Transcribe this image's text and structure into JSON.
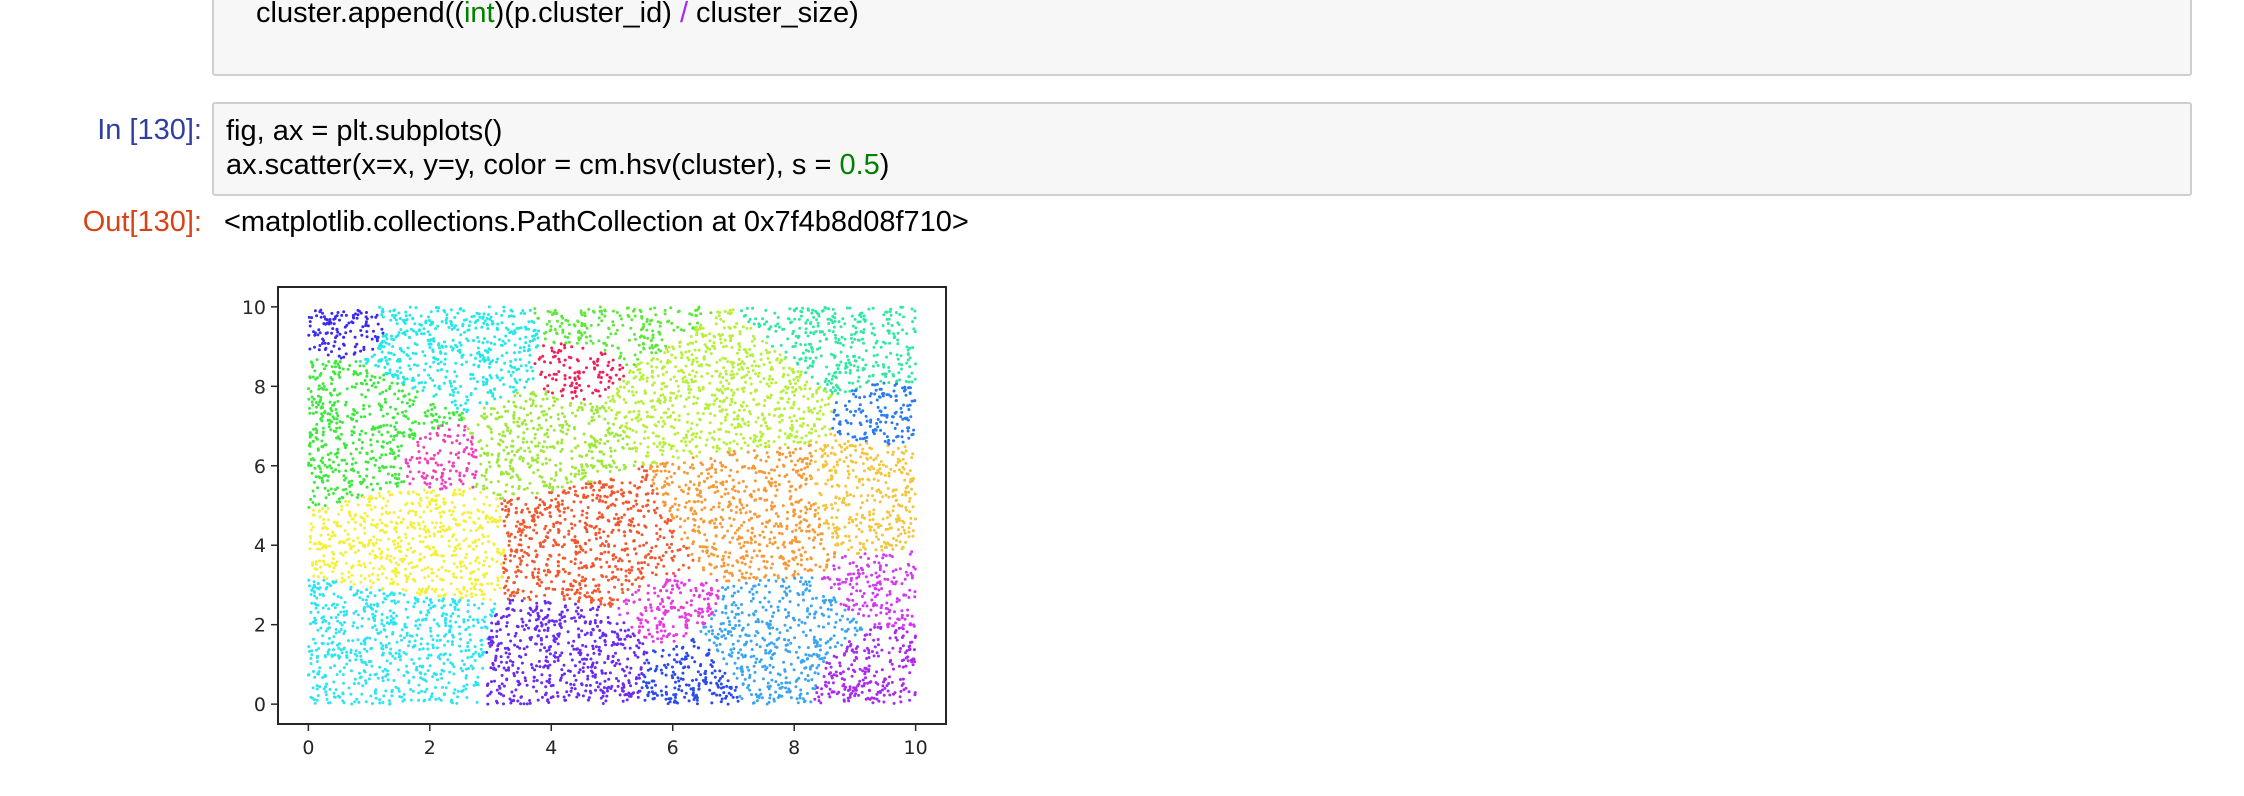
{
  "cell_top": {
    "code_line": [
      "cluster.append((",
      "int",
      ")(p.cluster_id) ",
      "/",
      " cluster_size)"
    ]
  },
  "cell_130": {
    "in_prompt": "In [130]:",
    "code_line1": "fig, ax = plt.subplots()",
    "code_line2_parts": [
      "ax.scatter(x=x, y=y, color = cm.hsv(cluster), s = ",
      "0.5",
      ")"
    ],
    "out_prompt": "Out[130]:",
    "output_repr": "<matplotlib.collections.PathCollection at 0x7f4b8d08f710>"
  },
  "chart_data": {
    "type": "scatter",
    "title": "",
    "xlabel": "",
    "ylabel": "",
    "xlim": [
      -0.5,
      10.5
    ],
    "ylim": [
      -0.5,
      10.5
    ],
    "xticks": [
      0,
      2,
      4,
      6,
      8,
      10
    ],
    "yticks": [
      0,
      2,
      4,
      6,
      8,
      10
    ],
    "grid": false,
    "point_region": {
      "x": [
        0,
        10
      ],
      "y": [
        0,
        10
      ]
    },
    "colormap": "hsv",
    "clusters": [
      {
        "center": [
          0.7,
          9.4
        ],
        "radius": 0.8,
        "color": "#3b2bf0"
      },
      {
        "center": [
          2.4,
          9.0
        ],
        "radius": 1.8,
        "color": "#22e8e8"
      },
      {
        "center": [
          0.9,
          7.0
        ],
        "radius": 1.8,
        "color": "#3ee83e"
      },
      {
        "center": [
          2.1,
          6.3
        ],
        "radius": 1.0,
        "color": "#f040b8"
      },
      {
        "center": [
          4.5,
          8.5
        ],
        "radius": 1.0,
        "color": "#f0205a"
      },
      {
        "center": [
          5.1,
          9.6
        ],
        "radius": 1.6,
        "color": "#5be83a"
      },
      {
        "center": [
          3.8,
          6.6
        ],
        "radius": 1.5,
        "color": "#9ee83a"
      },
      {
        "center": [
          6.6,
          8.0
        ],
        "radius": 1.9,
        "color": "#b6f03a"
      },
      {
        "center": [
          8.8,
          9.6
        ],
        "radius": 1.7,
        "color": "#30e8a2"
      },
      {
        "center": [
          9.5,
          7.3
        ],
        "radius": 0.8,
        "color": "#2a7af0"
      },
      {
        "center": [
          1.9,
          4.0
        ],
        "radius": 1.6,
        "color": "#f4f03a"
      },
      {
        "center": [
          4.7,
          4.0
        ],
        "radius": 1.8,
        "color": "#f2582e"
      },
      {
        "center": [
          7.3,
          4.9
        ],
        "radius": 1.7,
        "color": "#f59a36"
      },
      {
        "center": [
          9.2,
          5.2
        ],
        "radius": 1.4,
        "color": "#f4c43a"
      },
      {
        "center": [
          1.4,
          1.4
        ],
        "radius": 1.8,
        "color": "#2ce4f2"
      },
      {
        "center": [
          4.3,
          1.2
        ],
        "radius": 1.6,
        "color": "#6a2af0"
      },
      {
        "center": [
          5.9,
          2.4
        ],
        "radius": 1.0,
        "color": "#e63ae0"
      },
      {
        "center": [
          7.6,
          1.6
        ],
        "radius": 1.5,
        "color": "#3aa6f0"
      },
      {
        "center": [
          6.3,
          0.8
        ],
        "radius": 1.0,
        "color": "#2a4af0"
      },
      {
        "center": [
          9.5,
          3.0
        ],
        "radius": 0.9,
        "color": "#d23af0"
      },
      {
        "center": [
          9.2,
          0.8
        ],
        "radius": 1.0,
        "color": "#a82af0"
      }
    ]
  }
}
